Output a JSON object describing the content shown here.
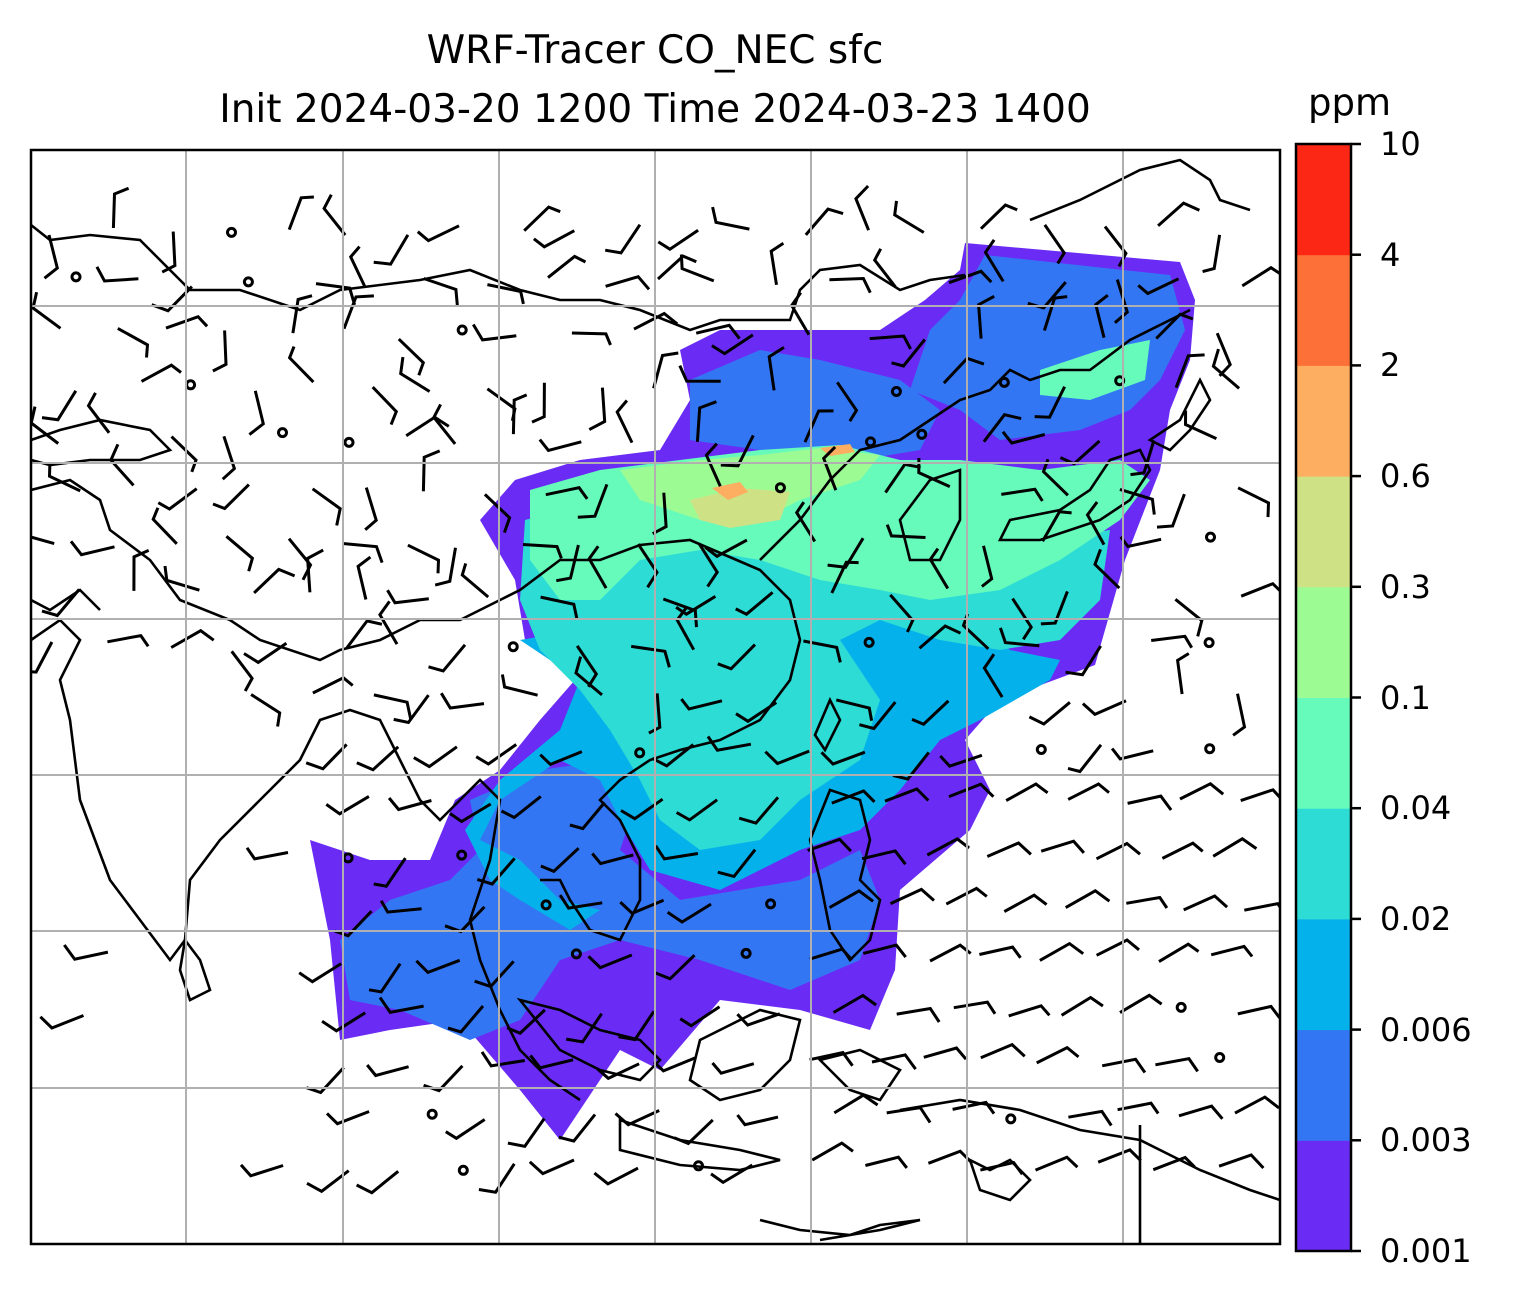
{
  "title": {
    "line1": "WRF-Tracer CO_NEC sfc",
    "line2": "Init 2024-03-20 1200 Time 2024-03-23 1400"
  },
  "colorbar": {
    "unit": "ppm",
    "levels": [
      "0.001",
      "0.003",
      "0.006",
      "0.02",
      "0.04",
      "0.1",
      "0.3",
      "0.6",
      "2",
      "4",
      "10"
    ],
    "colors": [
      "#6a2cf5",
      "#3376f3",
      "#05b1ea",
      "#2edcd6",
      "#66fbbb",
      "#9dfb94",
      "#cee185",
      "#fdae61",
      "#fd7038",
      "#fd2716"
    ]
  },
  "map": {
    "field": "CO_NEC surface tracer concentration",
    "overlay": "wind barbs",
    "gridlines": true,
    "coastlines": true
  }
}
